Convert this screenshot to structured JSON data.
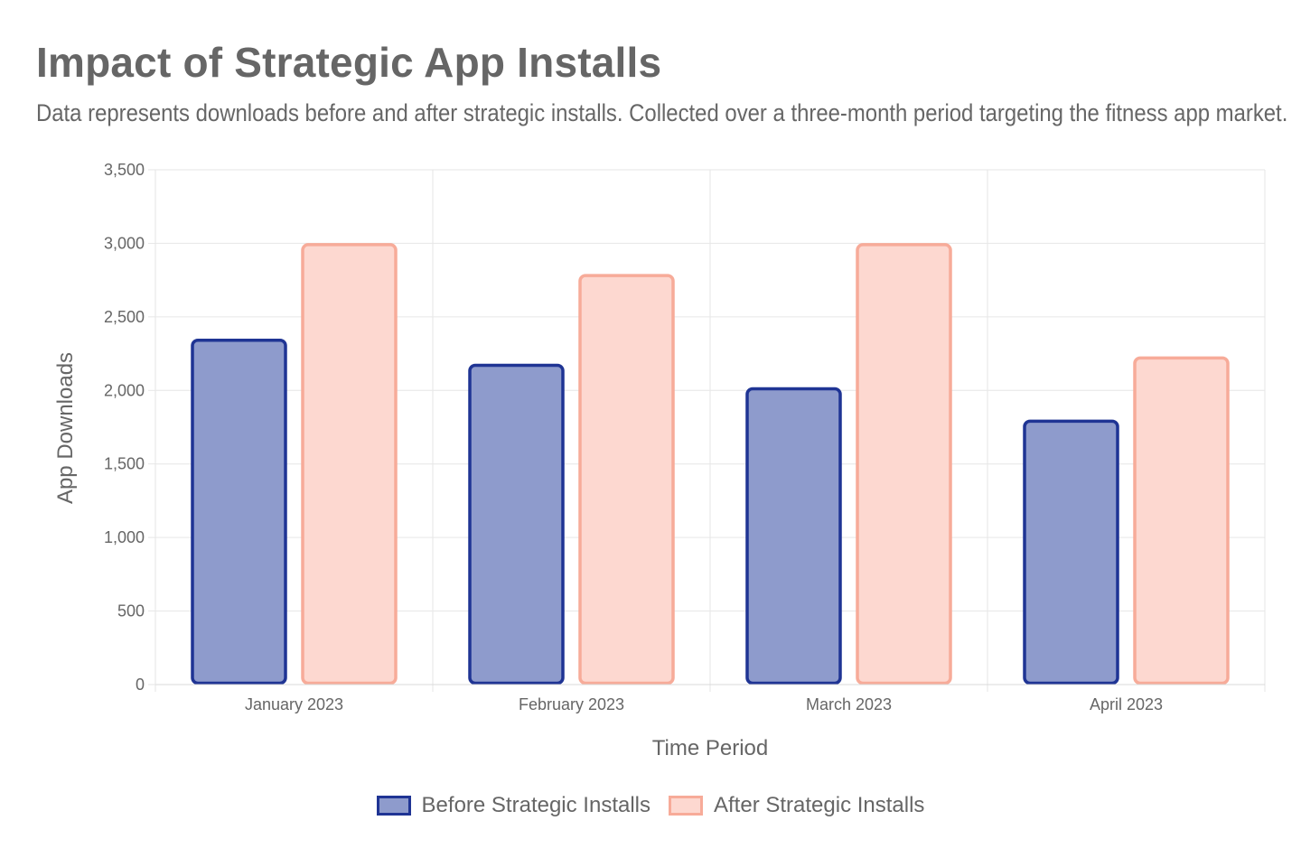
{
  "title": "Impact of Strategic App Installs",
  "subtitle": "Data represents downloads before and after strategic installs. Collected over a three-month period targeting the fitness app market.",
  "chart_data": {
    "type": "bar",
    "categories": [
      "January 2023",
      "February 2023",
      "March 2023",
      "April 2023"
    ],
    "series": [
      {
        "name": "Before Strategic Installs",
        "values": [
          2350,
          2180,
          2020,
          1800
        ],
        "fill": "#8e9bcc",
        "stroke": "#1f3494"
      },
      {
        "name": "After Strategic Installs",
        "values": [
          3000,
          2790,
          3000,
          2230
        ],
        "fill": "#fdd8d0",
        "stroke": "#f7ab99"
      }
    ],
    "xlabel": "Time Period",
    "ylabel": "App Downloads",
    "ylim": [
      0,
      3500
    ],
    "yticks": [
      0,
      500,
      1000,
      1500,
      2000,
      2500,
      3000,
      3500
    ],
    "ytick_labels": [
      "0",
      "500",
      "1,000",
      "1,500",
      "2,000",
      "2,500",
      "3,000",
      "3,500"
    ],
    "grid": true,
    "legend_position": "bottom-center"
  }
}
